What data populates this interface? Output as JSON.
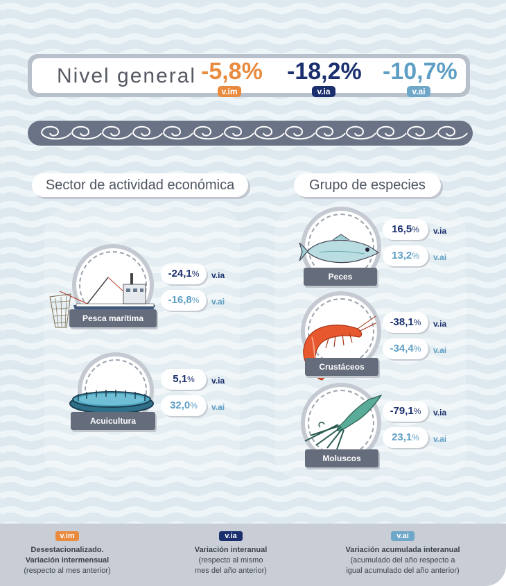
{
  "header": {
    "title": "Nivel general",
    "vim_value": "-5,8%",
    "via_value": "-18,2%",
    "vai_value": "-10,7%",
    "vim_tag": "v.im",
    "via_tag": "v.ia",
    "vai_tag": "v.ai"
  },
  "sectors": {
    "title": "Sector de actividad económica",
    "items": [
      {
        "label": "Pesca marítima",
        "via": "-24,1",
        "vai": "-16,8",
        "pct": "%",
        "via_tag": "v.ia",
        "vai_tag": "v.ai",
        "icon": "fishing-boat-icon"
      },
      {
        "label": "Acuicultura",
        "via": "5,1",
        "vai": "32,0",
        "pct": "%",
        "via_tag": "v.ia",
        "vai_tag": "v.ai",
        "icon": "fish-farm-cage-icon"
      }
    ]
  },
  "species": {
    "title": "Grupo de especies",
    "items": [
      {
        "label": "Peces",
        "via": "16,5",
        "vai": "13,2",
        "pct": "%",
        "via_tag": "v.ia",
        "vai_tag": "v.ai",
        "icon": "fish-icon"
      },
      {
        "label": "Crustáceos",
        "via": "-38,1",
        "vai": "-34,4",
        "pct": "%",
        "via_tag": "v.ia",
        "vai_tag": "v.ai",
        "icon": "shrimp-icon"
      },
      {
        "label": "Moluscos",
        "via": "-79,1",
        "vai": "23,1",
        "pct": "%",
        "via_tag": "v.ia",
        "vai_tag": "v.ai",
        "icon": "squid-icon"
      }
    ]
  },
  "legend": {
    "vim": {
      "tag": "v.im",
      "line1": "Desestacionalizado.",
      "line2": "Variación intermensual",
      "line3": "(respecto al mes anterior)"
    },
    "via": {
      "tag": "v.ia",
      "line1": "Variación interanual",
      "line2": "(respecto al mismo",
      "line3": "mes del año anterior)"
    },
    "vai": {
      "tag": "v.ai",
      "line1": "Variación acumulada interanual",
      "line2": "(acumulado del año respecto a",
      "line3": "igual acumulado del año anterior)"
    }
  },
  "colors": {
    "vim": "#e98b3f",
    "via": "#1b2f6e",
    "vai": "#5e9ec4",
    "label_bg": "#656c7c",
    "background": "#dde9ef"
  }
}
